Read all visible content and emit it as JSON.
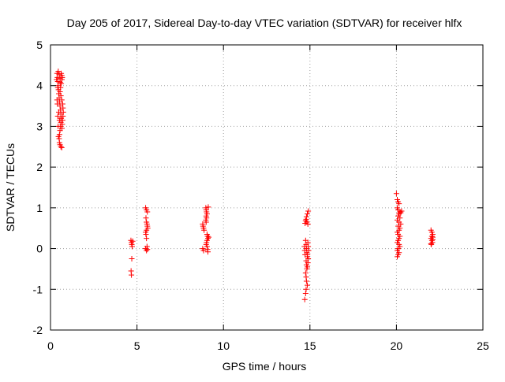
{
  "chart_data": {
    "type": "scatter",
    "title": "Day 205 of 2017, Sidereal Day-to-day VTEC variation (SDTVAR) for receiver hlfx",
    "xlabel": "GPS time / hours",
    "ylabel": "SDTVAR / TECUs",
    "xlim": [
      0,
      25
    ],
    "ylim": [
      -2,
      5
    ],
    "x_ticks": [
      0,
      5,
      10,
      15,
      20,
      25
    ],
    "y_ticks": [
      -2,
      -1,
      0,
      1,
      2,
      3,
      4,
      5
    ],
    "grid": true,
    "marker": "+",
    "marker_color": "#ff0000",
    "series": [
      {
        "name": "hlfx",
        "points": [
          [
            0.38,
            4.3
          ],
          [
            0.4,
            4.2
          ],
          [
            0.42,
            4.1
          ],
          [
            0.44,
            4.0
          ],
          [
            0.46,
            3.9
          ],
          [
            0.48,
            3.8
          ],
          [
            0.5,
            3.7
          ],
          [
            0.52,
            3.6
          ],
          [
            0.55,
            3.5
          ],
          [
            0.58,
            3.4
          ],
          [
            0.6,
            3.3
          ],
          [
            0.62,
            3.2
          ],
          [
            0.6,
            3.1
          ],
          [
            0.58,
            3.0
          ],
          [
            0.55,
            2.9
          ],
          [
            0.52,
            2.8
          ],
          [
            0.5,
            2.7
          ],
          [
            0.52,
            2.6
          ],
          [
            0.55,
            2.55
          ],
          [
            0.6,
            2.5
          ],
          [
            0.65,
            2.48
          ],
          [
            0.62,
            4.3
          ],
          [
            0.65,
            4.25
          ],
          [
            0.68,
            4.2
          ],
          [
            0.66,
            4.15
          ],
          [
            0.62,
            4.05
          ],
          [
            0.58,
            3.95
          ],
          [
            0.55,
            3.85
          ],
          [
            0.6,
            3.75
          ],
          [
            0.65,
            3.65
          ],
          [
            0.7,
            3.55
          ],
          [
            0.72,
            3.45
          ],
          [
            0.74,
            3.35
          ],
          [
            0.72,
            3.25
          ],
          [
            0.7,
            3.15
          ],
          [
            0.68,
            3.05
          ],
          [
            0.66,
            2.95
          ],
          [
            0.45,
            4.35
          ],
          [
            0.5,
            4.28
          ],
          [
            0.55,
            4.18
          ],
          [
            0.42,
            3.95
          ],
          [
            0.4,
            3.55
          ],
          [
            0.42,
            3.25
          ],
          [
            0.44,
            3.0
          ],
          [
            0.46,
            2.75
          ],
          [
            0.48,
            3.35
          ],
          [
            0.52,
            3.15
          ],
          [
            0.56,
            4.08
          ],
          [
            0.6,
            3.2
          ],
          [
            0.35,
            4.15
          ],
          [
            0.38,
            3.65
          ],
          [
            4.65,
            0.2
          ],
          [
            4.68,
            0.15
          ],
          [
            4.7,
            0.1
          ],
          [
            4.72,
            0.05
          ],
          [
            4.75,
            0.18
          ],
          [
            4.7,
            -0.25
          ],
          [
            4.66,
            -0.55
          ],
          [
            4.68,
            -0.65
          ],
          [
            5.5,
            1.0
          ],
          [
            5.55,
            0.95
          ],
          [
            5.6,
            0.9
          ],
          [
            5.52,
            0.75
          ],
          [
            5.55,
            0.65
          ],
          [
            5.58,
            0.6
          ],
          [
            5.6,
            0.55
          ],
          [
            5.62,
            0.5
          ],
          [
            5.55,
            0.45
          ],
          [
            5.5,
            0.4
          ],
          [
            5.52,
            0.35
          ],
          [
            5.55,
            0.25
          ],
          [
            5.58,
            0.05
          ],
          [
            5.5,
            0.0
          ],
          [
            5.55,
            -0.05
          ],
          [
            5.6,
            -0.02
          ],
          [
            8.8,
            0.6
          ],
          [
            8.82,
            0.55
          ],
          [
            8.85,
            0.5
          ],
          [
            8.88,
            0.45
          ],
          [
            8.8,
            0.0
          ],
          [
            8.85,
            -0.05
          ],
          [
            8.98,
            1.0
          ],
          [
            9.0,
            0.95
          ],
          [
            9.02,
            0.9
          ],
          [
            9.05,
            0.85
          ],
          [
            9.0,
            0.8
          ],
          [
            9.02,
            0.75
          ],
          [
            8.98,
            0.7
          ],
          [
            9.0,
            0.65
          ],
          [
            9.05,
            0.35
          ],
          [
            9.08,
            0.3
          ],
          [
            9.1,
            0.25
          ],
          [
            9.05,
            0.2
          ],
          [
            9.02,
            0.15
          ],
          [
            9.0,
            0.1
          ],
          [
            9.05,
            0.05
          ],
          [
            9.08,
            -0.02
          ],
          [
            9.1,
            -0.08
          ],
          [
            9.12,
            1.02
          ],
          [
            9.15,
            0.28
          ],
          [
            14.72,
            0.62
          ],
          [
            14.75,
            0.68
          ],
          [
            14.78,
            0.72
          ],
          [
            14.8,
            0.78
          ],
          [
            14.85,
            0.85
          ],
          [
            14.9,
            0.92
          ],
          [
            14.82,
            0.65
          ],
          [
            14.88,
            0.6
          ],
          [
            14.75,
            0.2
          ],
          [
            14.78,
            0.1
          ],
          [
            14.8,
            0.0
          ],
          [
            14.82,
            -0.1
          ],
          [
            14.85,
            -0.2
          ],
          [
            14.78,
            -0.3
          ],
          [
            14.8,
            -0.4
          ],
          [
            14.82,
            -0.5
          ],
          [
            14.75,
            -0.6
          ],
          [
            14.78,
            -0.7
          ],
          [
            14.8,
            -0.8
          ],
          [
            14.85,
            -0.9
          ],
          [
            14.78,
            -1.0
          ],
          [
            14.75,
            -1.1
          ],
          [
            14.7,
            -1.25
          ],
          [
            14.88,
            0.15
          ],
          [
            14.9,
            0.05
          ],
          [
            14.92,
            -0.05
          ],
          [
            14.86,
            -0.15
          ],
          [
            14.9,
            -0.25
          ],
          [
            14.88,
            -0.35
          ],
          [
            14.85,
            -0.45
          ],
          [
            14.7,
            -0.05
          ],
          [
            14.72,
            -0.15
          ],
          [
            14.68,
            0.05
          ],
          [
            20.0,
            1.35
          ],
          [
            20.05,
            1.2
          ],
          [
            20.1,
            1.15
          ],
          [
            20.15,
            1.1
          ],
          [
            20.05,
            1.0
          ],
          [
            20.1,
            0.95
          ],
          [
            20.2,
            0.9
          ],
          [
            20.15,
            0.85
          ],
          [
            20.1,
            0.8
          ],
          [
            20.2,
            0.75
          ],
          [
            20.05,
            0.7
          ],
          [
            20.15,
            0.65
          ],
          [
            20.25,
            0.6
          ],
          [
            20.1,
            0.55
          ],
          [
            20.2,
            0.5
          ],
          [
            20.15,
            0.45
          ],
          [
            20.05,
            0.4
          ],
          [
            20.1,
            0.35
          ],
          [
            20.2,
            0.3
          ],
          [
            20.15,
            0.25
          ],
          [
            20.1,
            0.2
          ],
          [
            20.05,
            0.15
          ],
          [
            20.15,
            0.1
          ],
          [
            20.2,
            0.05
          ],
          [
            20.1,
            0.0
          ],
          [
            20.05,
            -0.05
          ],
          [
            20.15,
            -0.1
          ],
          [
            20.1,
            -0.15
          ],
          [
            20.05,
            -0.2
          ],
          [
            20.25,
            0.88
          ],
          [
            20.3,
            0.92
          ],
          [
            22.0,
            0.45
          ],
          [
            22.05,
            0.4
          ],
          [
            22.1,
            0.35
          ],
          [
            22.05,
            0.3
          ],
          [
            22.0,
            0.25
          ],
          [
            22.1,
            0.22
          ],
          [
            22.05,
            0.2
          ],
          [
            22.08,
            0.15
          ],
          [
            22.02,
            0.1
          ],
          [
            22.1,
            0.28
          ],
          [
            22.0,
            0.12
          ]
        ]
      }
    ]
  }
}
